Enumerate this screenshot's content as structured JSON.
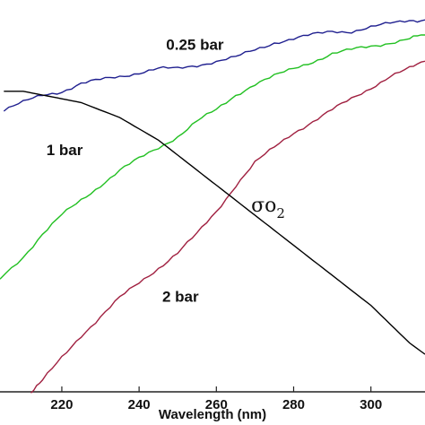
{
  "chart_data": {
    "type": "line",
    "title": "",
    "xlabel": "Wavelength (nm)",
    "ylabel": "",
    "xlim": [
      204,
      314
    ],
    "ylim": [
      0,
      1
    ],
    "x_ticks": [
      "220",
      "240",
      "260",
      "280",
      "300"
    ],
    "grid": false,
    "series": [
      {
        "name": "0.25 bar",
        "color": "#1f1f8f",
        "x": [
          205,
          210,
          215,
          220,
          225,
          230,
          235,
          240,
          245,
          250,
          255,
          260,
          265,
          270,
          275,
          280,
          285,
          290,
          295,
          300,
          305,
          310,
          314
        ],
        "y": [
          0.75,
          0.77,
          0.79,
          0.8,
          0.82,
          0.83,
          0.84,
          0.85,
          0.86,
          0.86,
          0.87,
          0.88,
          0.89,
          0.91,
          0.93,
          0.94,
          0.95,
          0.96,
          0.96,
          0.97,
          0.98,
          0.99,
          0.99
        ]
      },
      {
        "name": "1 bar",
        "color": "#22c022",
        "x": [
          204,
          210,
          215,
          220,
          225,
          230,
          235,
          240,
          245,
          250,
          255,
          260,
          265,
          270,
          275,
          280,
          285,
          290,
          295,
          300,
          305,
          310,
          314
        ],
        "y": [
          0.3,
          0.36,
          0.42,
          0.47,
          0.51,
          0.55,
          0.59,
          0.62,
          0.65,
          0.68,
          0.72,
          0.75,
          0.79,
          0.82,
          0.84,
          0.86,
          0.88,
          0.9,
          0.91,
          0.92,
          0.93,
          0.94,
          0.95
        ]
      },
      {
        "name": "2 bar",
        "color": "#a02040",
        "x": [
          212,
          215,
          220,
          225,
          230,
          235,
          240,
          245,
          250,
          255,
          260,
          265,
          270,
          275,
          280,
          285,
          290,
          295,
          300,
          305,
          310,
          314
        ],
        "y": [
          0.0,
          0.03,
          0.09,
          0.15,
          0.2,
          0.25,
          0.29,
          0.33,
          0.37,
          0.42,
          0.48,
          0.55,
          0.61,
          0.65,
          0.69,
          0.72,
          0.75,
          0.78,
          0.81,
          0.84,
          0.86,
          0.88
        ]
      },
      {
        "name": "σO2",
        "color": "#000000",
        "x": [
          205,
          210,
          215,
          220,
          225,
          230,
          235,
          240,
          245,
          250,
          255,
          260,
          265,
          270,
          275,
          280,
          285,
          290,
          295,
          300,
          305,
          310,
          314
        ],
        "y": [
          0.8,
          0.8,
          0.79,
          0.78,
          0.77,
          0.75,
          0.73,
          0.7,
          0.67,
          0.63,
          0.59,
          0.55,
          0.51,
          0.47,
          0.43,
          0.39,
          0.35,
          0.31,
          0.27,
          0.23,
          0.18,
          0.13,
          0.1
        ]
      }
    ],
    "annotations": [
      {
        "text": "0.25 bar",
        "x": 247,
        "y": 0.91
      },
      {
        "text": "1 bar",
        "x": 216,
        "y": 0.63
      },
      {
        "text": "2 bar",
        "x": 246,
        "y": 0.24
      },
      {
        "text": "σo",
        "sub": "2",
        "x": 269,
        "y": 0.48
      }
    ]
  }
}
